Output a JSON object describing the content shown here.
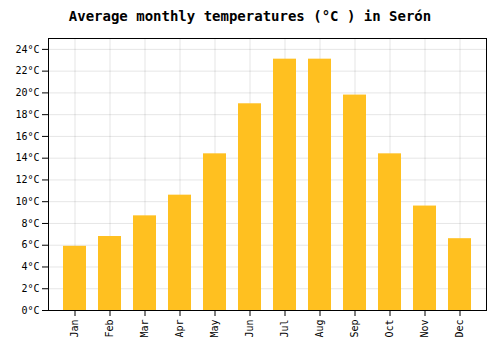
{
  "chart_data": {
    "type": "bar",
    "title": "Average monthly temperatures (°C ) in Serón",
    "categories": [
      "Jan",
      "Feb",
      "Mar",
      "Apr",
      "May",
      "Jun",
      "Jul",
      "Aug",
      "Sep",
      "Oct",
      "Nov",
      "Dec"
    ],
    "values": [
      5.9,
      6.8,
      8.7,
      10.6,
      14.4,
      19.0,
      23.1,
      23.1,
      19.8,
      14.4,
      9.6,
      6.6
    ],
    "color": "#FFC020",
    "ylim": [
      0,
      25
    ],
    "yticks": [
      {
        "value": 0,
        "label": "0°C"
      },
      {
        "value": 2,
        "label": "2°C"
      },
      {
        "value": 4,
        "label": "4°C"
      },
      {
        "value": 6,
        "label": "6°C"
      },
      {
        "value": 8,
        "label": "8°C"
      },
      {
        "value": 10,
        "label": "10°C"
      },
      {
        "value": 12,
        "label": "12°C"
      },
      {
        "value": 14,
        "label": "14°C"
      },
      {
        "value": 16,
        "label": "16°C"
      },
      {
        "value": 18,
        "label": "18°C"
      },
      {
        "value": 20,
        "label": "20°C"
      },
      {
        "value": 22,
        "label": "22°C"
      },
      {
        "value": 24,
        "label": "24°C"
      }
    ],
    "grid": true
  }
}
